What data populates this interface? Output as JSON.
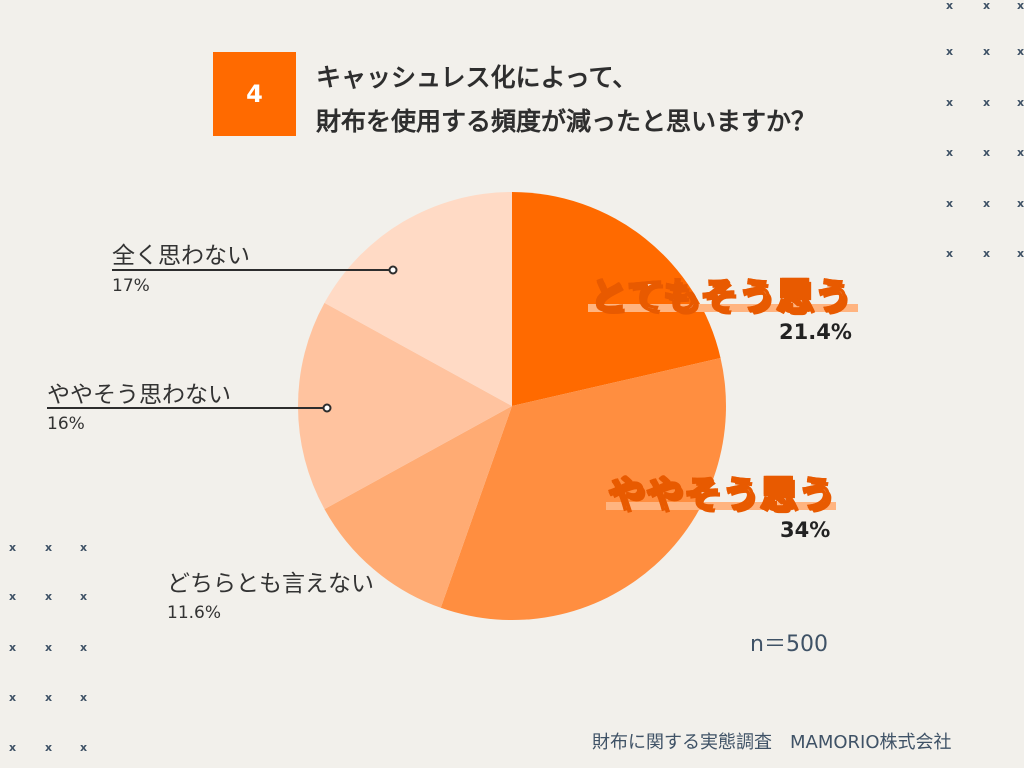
{
  "question": {
    "number": "4",
    "line1": "キャッシュレス化によって、",
    "line2": "財布を使用する頻度が減ったと思いますか？"
  },
  "chart_data": {
    "type": "pie",
    "title": "キャッシュレス化によって、財布を使用する頻度が減ったと思いますか？",
    "categories": [
      "とてもそう思う",
      "ややそう思う",
      "どちらとも言えない",
      "ややそう思わない",
      "全く思わない"
    ],
    "values": [
      21.4,
      34,
      11.6,
      16,
      17
    ],
    "value_labels": [
      "21.4%",
      "34%",
      "11.6%",
      "16%",
      "17%"
    ],
    "colors": [
      "#ff6a00",
      "#ff8e40",
      "#ffab73",
      "#ffc39f",
      "#ffdac5"
    ],
    "start": "12 o'clock",
    "direction": "clockwise"
  },
  "sample_size": "n＝500",
  "source": "財布に関する実態調査　MAMORIO株式会社",
  "decor_mark": "x"
}
